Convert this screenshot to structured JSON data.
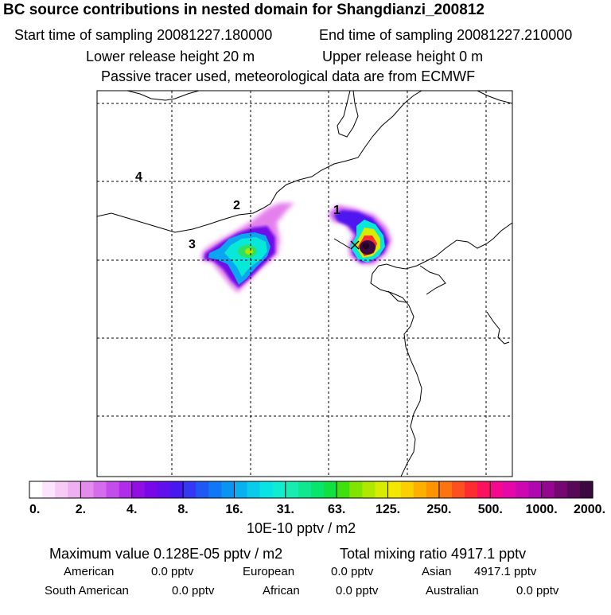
{
  "header": {
    "title": "BC  source contributions in nested domain for Shangdianzi_200812",
    "start_time": "Start time of sampling 20081227.180000",
    "end_time": "End time of sampling 20081227.210000",
    "lower_release": "Lower release height   20 m",
    "upper_release": "Upper release height    0 m",
    "tracer_note": "Passive tracer used, meteorological data are from ECMWF"
  },
  "map": {
    "labels": [
      "1",
      "2",
      "3",
      "4"
    ],
    "station_marker": "x-icon",
    "colors": {
      "gridline": "#000000",
      "coastline": "#000000"
    }
  },
  "colorbar": {
    "tick_labels": [
      "0.",
      "2.",
      "4.",
      "8.",
      "16.",
      "31.",
      "63.",
      "125.",
      "250.",
      "500.",
      "1000.",
      "2000."
    ],
    "colors": [
      "#ffffff",
      "#fce4fc",
      "#f6ccf6",
      "#eeb0f0",
      "#e48cec",
      "#d46cec",
      "#c44cec",
      "#b02ce8",
      "#9010e4",
      "#7808e8",
      "#6010ec",
      "#4818f0",
      "#3438f4",
      "#2058f4",
      "#1078f4",
      "#0894f0",
      "#08b0f0",
      "#08cce8",
      "#08e4e4",
      "#10ecd0",
      "#18ecb0",
      "#10e890",
      "#08e46c",
      "#10e040",
      "#40e010",
      "#80e400",
      "#b0e800",
      "#d8ec00",
      "#f4e800",
      "#fcd000",
      "#fcb000",
      "#fc9400",
      "#fc7410",
      "#fc5020",
      "#fc2c30",
      "#fc1060",
      "#f40890",
      "#e408a8",
      "#cc08b0",
      "#b008b0",
      "#940890",
      "#740870",
      "#580858",
      "#3c0840"
    ],
    "unit": "10E-10 pptv / m2"
  },
  "summary": {
    "maximum": "Maximum value  0.128E-05 pptv / m2",
    "total": "Total mixing ratio     4917.1 pptv",
    "contributions": [
      {
        "name": "American",
        "value": "0.0 pptv"
      },
      {
        "name": "European",
        "value": "0.0 pptv"
      },
      {
        "name": "Asian",
        "value": "4917.1 pptv"
      },
      {
        "name": "South American",
        "value": "0.0 pptv"
      },
      {
        "name": "African",
        "value": "0.0 pptv"
      },
      {
        "name": "Australian",
        "value": "0.0 pptv"
      }
    ]
  }
}
